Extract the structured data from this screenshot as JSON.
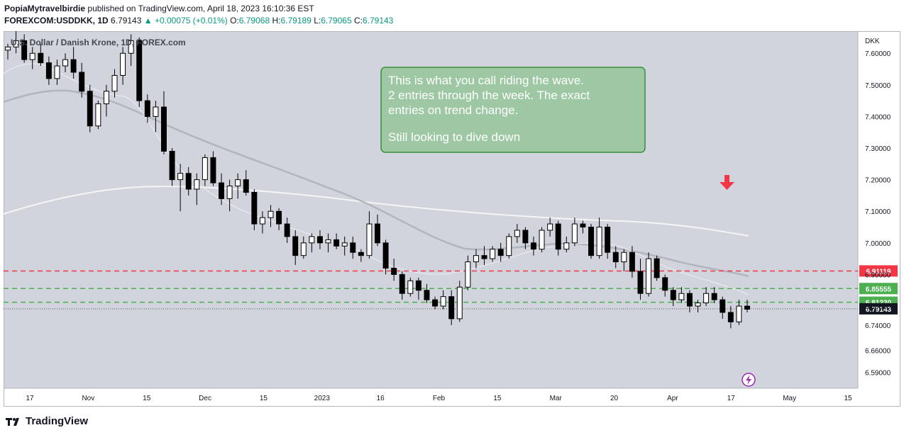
{
  "header": {
    "author": "PopiaMytravelbirdie",
    "published_text": "published on TradingView.com, April 18, 2023 16:10:36 EST",
    "symbol": "FOREXCOM:USDDKK, 1D",
    "last": "6.79143",
    "change": "+0.00075 (+0.01%)",
    "o_label": "O:",
    "o_value": "6.79068",
    "h_label": "H:",
    "h_value": "6.79189",
    "l_label": "L:",
    "l_value": "6.79065",
    "c_label": "C:",
    "c_value": "6.79143"
  },
  "legend_title": "U.S. Dollar / Danish Krone, 1D, FOREX.com",
  "annotation": {
    "lines": [
      "This is what you call riding the wave.",
      "2 entries through the week. The exact",
      "entries on trend change.",
      "",
      "Still looking to dive down"
    ]
  },
  "footer": {
    "brand": "TradingView"
  },
  "colors": {
    "plot_bg": "#d1d4dc",
    "up_body": "#ffffff",
    "down_body": "#000000",
    "red_line": "#f23645",
    "green_line": "#4caf50",
    "annotation_bg": "#9dc8a3",
    "annotation_border": "#388e3c",
    "arrow": "#f23645"
  },
  "chart_data": {
    "type": "candlestick",
    "title": "U.S. Dollar / Danish Krone, 1D, FOREX.com",
    "y_axis_label": "DKK",
    "ylim": [
      6.54,
      7.67
    ],
    "y_ticks": [
      "7.60000",
      "7.50000",
      "7.40000",
      "7.30000",
      "7.20000",
      "7.10000",
      "7.00000",
      "6.90000",
      "6.80000",
      "6.74000",
      "6.66000",
      "6.59000"
    ],
    "x_ticks": [
      "17",
      "Nov",
      "15",
      "Dec",
      "15",
      "2023",
      "16",
      "Feb",
      "15",
      "Mar",
      "20",
      "Apr",
      "17",
      "May",
      "15"
    ],
    "horizontal_lines": [
      {
        "value": 6.91119,
        "label": "6.91119",
        "style": "dashed",
        "color": "#f23645"
      },
      {
        "value": 6.85555,
        "label": "6.85555",
        "style": "dashed",
        "color": "#4caf50"
      },
      {
        "value": 6.8122,
        "label": "6.81220",
        "style": "dashed",
        "color": "#4caf50"
      }
    ],
    "last_price": {
      "value": 6.79143,
      "label": "6.79143"
    },
    "candles": [
      [
        7.61,
        7.63,
        7.58,
        7.62
      ],
      [
        7.62,
        7.67,
        7.6,
        7.64
      ],
      [
        7.64,
        7.66,
        7.57,
        7.58
      ],
      [
        7.58,
        7.62,
        7.55,
        7.6
      ],
      [
        7.6,
        7.63,
        7.56,
        7.57
      ],
      [
        7.57,
        7.59,
        7.5,
        7.52
      ],
      [
        7.52,
        7.58,
        7.5,
        7.56
      ],
      [
        7.56,
        7.6,
        7.54,
        7.58
      ],
      [
        7.58,
        7.62,
        7.52,
        7.54
      ],
      [
        7.54,
        7.57,
        7.46,
        7.48
      ],
      [
        7.48,
        7.5,
        7.35,
        7.37
      ],
      [
        7.37,
        7.45,
        7.36,
        7.44
      ],
      [
        7.44,
        7.5,
        7.4,
        7.48
      ],
      [
        7.48,
        7.55,
        7.46,
        7.53
      ],
      [
        7.53,
        7.62,
        7.5,
        7.6
      ],
      [
        7.6,
        7.66,
        7.56,
        7.64
      ],
      [
        7.64,
        7.65,
        7.43,
        7.45
      ],
      [
        7.45,
        7.47,
        7.38,
        7.4
      ],
      [
        7.4,
        7.45,
        7.35,
        7.43
      ],
      [
        7.43,
        7.48,
        7.28,
        7.29
      ],
      [
        7.29,
        7.3,
        7.18,
        7.2
      ],
      [
        7.2,
        7.25,
        7.1,
        7.22
      ],
      [
        7.22,
        7.24,
        7.15,
        7.17
      ],
      [
        7.17,
        7.22,
        7.12,
        7.2
      ],
      [
        7.2,
        7.28,
        7.18,
        7.27
      ],
      [
        7.27,
        7.29,
        7.18,
        7.19
      ],
      [
        7.19,
        7.22,
        7.12,
        7.14
      ],
      [
        7.14,
        7.2,
        7.1,
        7.18
      ],
      [
        7.18,
        7.22,
        7.14,
        7.2
      ],
      [
        7.2,
        7.23,
        7.15,
        7.16
      ],
      [
        7.16,
        7.17,
        7.04,
        7.06
      ],
      [
        7.06,
        7.1,
        7.03,
        7.08
      ],
      [
        7.08,
        7.12,
        7.05,
        7.1
      ],
      [
        7.1,
        7.11,
        7.04,
        7.06
      ],
      [
        7.06,
        7.08,
        7.0,
        7.02
      ],
      [
        7.02,
        7.04,
        6.93,
        6.96
      ],
      [
        6.96,
        7.02,
        6.95,
        7.0
      ],
      [
        7.0,
        7.03,
        6.97,
        7.02
      ],
      [
        7.02,
        7.04,
        6.98,
        7.0
      ],
      [
        7.0,
        7.03,
        6.97,
        7.01
      ],
      [
        7.01,
        7.03,
        6.98,
        6.99
      ],
      [
        6.99,
        7.02,
        6.96,
        7.0
      ],
      [
        7.0,
        7.02,
        6.95,
        6.97
      ],
      [
        6.97,
        6.98,
        6.94,
        6.96
      ],
      [
        6.96,
        7.1,
        6.95,
        7.06
      ],
      [
        7.06,
        7.09,
        6.99,
        7.0
      ],
      [
        7.0,
        7.01,
        6.9,
        6.92
      ],
      [
        6.92,
        6.95,
        6.88,
        6.9
      ],
      [
        6.9,
        6.91,
        6.82,
        6.84
      ],
      [
        6.84,
        6.89,
        6.83,
        6.88
      ],
      [
        6.88,
        6.89,
        6.82,
        6.85
      ],
      [
        6.85,
        6.87,
        6.81,
        6.82
      ],
      [
        6.82,
        6.83,
        6.79,
        6.8
      ],
      [
        6.8,
        6.85,
        6.79,
        6.83
      ],
      [
        6.83,
        6.85,
        6.74,
        6.76
      ],
      [
        6.76,
        6.88,
        6.75,
        6.86
      ],
      [
        6.86,
        6.96,
        6.85,
        6.94
      ],
      [
        6.94,
        6.98,
        6.92,
        6.96
      ],
      [
        6.96,
        6.99,
        6.93,
        6.95
      ],
      [
        6.95,
        6.99,
        6.94,
        6.98
      ],
      [
        6.98,
        7.0,
        6.94,
        6.96
      ],
      [
        6.96,
        7.03,
        6.95,
        7.02
      ],
      [
        7.02,
        7.06,
        7.0,
        7.04
      ],
      [
        7.04,
        7.05,
        6.98,
        7.0
      ],
      [
        7.0,
        7.02,
        6.96,
        6.98
      ],
      [
        6.98,
        7.05,
        6.97,
        7.04
      ],
      [
        7.04,
        7.08,
        7.02,
        7.06
      ],
      [
        7.06,
        7.07,
        6.96,
        6.98
      ],
      [
        6.98,
        7.02,
        6.97,
        7.0
      ],
      [
        7.0,
        7.08,
        6.99,
        7.06
      ],
      [
        7.06,
        7.07,
        7.03,
        7.05
      ],
      [
        7.05,
        7.06,
        6.95,
        6.96
      ],
      [
        6.96,
        7.08,
        6.95,
        7.05
      ],
      [
        7.05,
        7.06,
        6.95,
        6.97
      ],
      [
        6.97,
        6.99,
        6.92,
        6.94
      ],
      [
        6.94,
        6.98,
        6.91,
        6.97
      ],
      [
        6.97,
        6.99,
        6.89,
        6.91
      ],
      [
        6.91,
        6.95,
        6.82,
        6.84
      ],
      [
        6.84,
        6.97,
        6.83,
        6.95
      ],
      [
        6.95,
        6.96,
        6.88,
        6.89
      ],
      [
        6.89,
        6.9,
        6.83,
        6.85
      ],
      [
        6.85,
        6.86,
        6.8,
        6.82
      ],
      [
        6.82,
        6.86,
        6.81,
        6.84
      ],
      [
        6.84,
        6.85,
        6.78,
        6.8
      ],
      [
        6.8,
        6.82,
        6.78,
        6.81
      ],
      [
        6.81,
        6.86,
        6.8,
        6.84
      ],
      [
        6.84,
        6.86,
        6.81,
        6.82
      ],
      [
        6.82,
        6.83,
        6.76,
        6.78
      ],
      [
        6.78,
        6.8,
        6.73,
        6.75
      ],
      [
        6.75,
        6.82,
        6.74,
        6.8
      ],
      [
        6.8,
        6.82,
        6.78,
        6.79
      ]
    ]
  }
}
